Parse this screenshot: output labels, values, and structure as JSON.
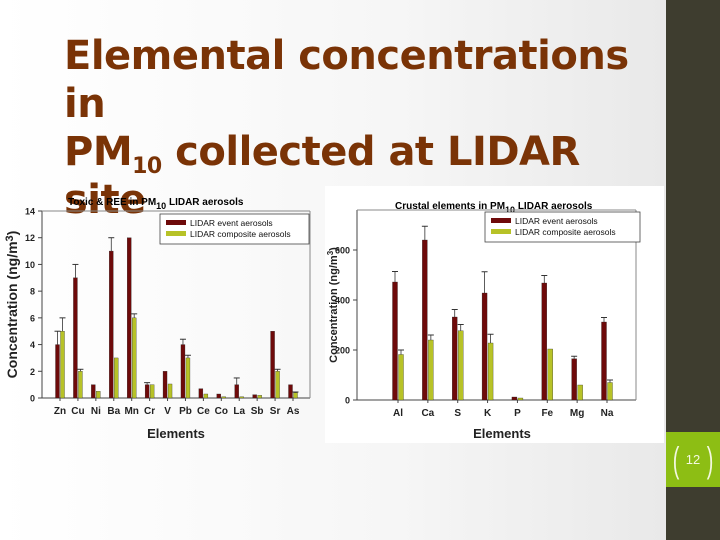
{
  "slide": {
    "title_line1": "Elemental concentrations in",
    "title_line2_prefix": "PM",
    "title_line2_sub": "10",
    "title_line2_suffix": " collected at LIDAR site",
    "page_number": "12"
  },
  "colors": {
    "title": "#7a3306",
    "event_series": "#6e0a0a",
    "composite_series": "#b7c227",
    "sidebar": "#3e3d2f",
    "page_badge": "#8dbe14"
  },
  "chart_data": [
    {
      "type": "bar",
      "title": "Toxic & REE in PM10 LIDAR aerosols",
      "title_prefix": "Toxic & REE in PM",
      "title_sub": "10",
      "title_suffix": " LIDAR aerosols",
      "xlabel": "Elements",
      "ylabel": "Concentration (ng/m3)",
      "ylim": [
        0,
        14
      ],
      "yticks": [
        0,
        2,
        4,
        6,
        8,
        10,
        12,
        14
      ],
      "grid": false,
      "legend_position": "upper right",
      "categories": [
        "Zn",
        "Cu",
        "Ni",
        "Ba",
        "Mn",
        "Cr",
        "V",
        "Pb",
        "Ce",
        "Co",
        "La",
        "Sb",
        "Sr",
        "As"
      ],
      "series": [
        {
          "name": "LIDAR event aerosols",
          "values": [
            4,
            9,
            1,
            11,
            12,
            1,
            2,
            4,
            0.7,
            0.3,
            1,
            0.25,
            5,
            1
          ],
          "errors": [
            1,
            1,
            0,
            1,
            0,
            0.15,
            0,
            0.4,
            0,
            0,
            0.5,
            0,
            0,
            0
          ]
        },
        {
          "name": "LIDAR composite aerosols",
          "values": [
            5,
            2,
            0.5,
            3,
            6,
            1,
            1.05,
            3,
            0.3,
            0.1,
            0.1,
            0.2,
            2,
            0.4
          ],
          "errors": [
            1,
            0.15,
            0,
            0,
            0.3,
            0,
            0,
            0.2,
            0,
            0,
            0,
            0,
            0.15,
            0.05
          ]
        }
      ]
    },
    {
      "type": "bar",
      "title": "Crustal elements in PM10 LIDAR aerosols",
      "title_prefix": "Crustal elements in PM",
      "title_sub": "10",
      "title_suffix": " LIDAR aerosols",
      "xlabel": "Elements",
      "ylabel": "Concentration (ng/m3)",
      "ylim": [
        0,
        760
      ],
      "yticks": [
        0,
        200,
        400,
        600
      ],
      "grid": false,
      "legend_position": "upper right",
      "categories": [
        "Al",
        "Ca",
        "S",
        "K",
        "P",
        "Fe",
        "Mg",
        "Na"
      ],
      "series": [
        {
          "name": "LIDAR event aerosols",
          "values": [
            472,
            640,
            332,
            428,
            12,
            468,
            165,
            312
          ],
          "errors": [
            42,
            55,
            30,
            85,
            0,
            30,
            10,
            18
          ]
        },
        {
          "name": "LIDAR composite aerosols",
          "values": [
            182,
            240,
            277,
            228,
            8,
            204,
            60,
            70
          ],
          "errors": [
            18,
            20,
            25,
            35,
            0,
            0,
            0,
            10
          ]
        }
      ]
    }
  ]
}
